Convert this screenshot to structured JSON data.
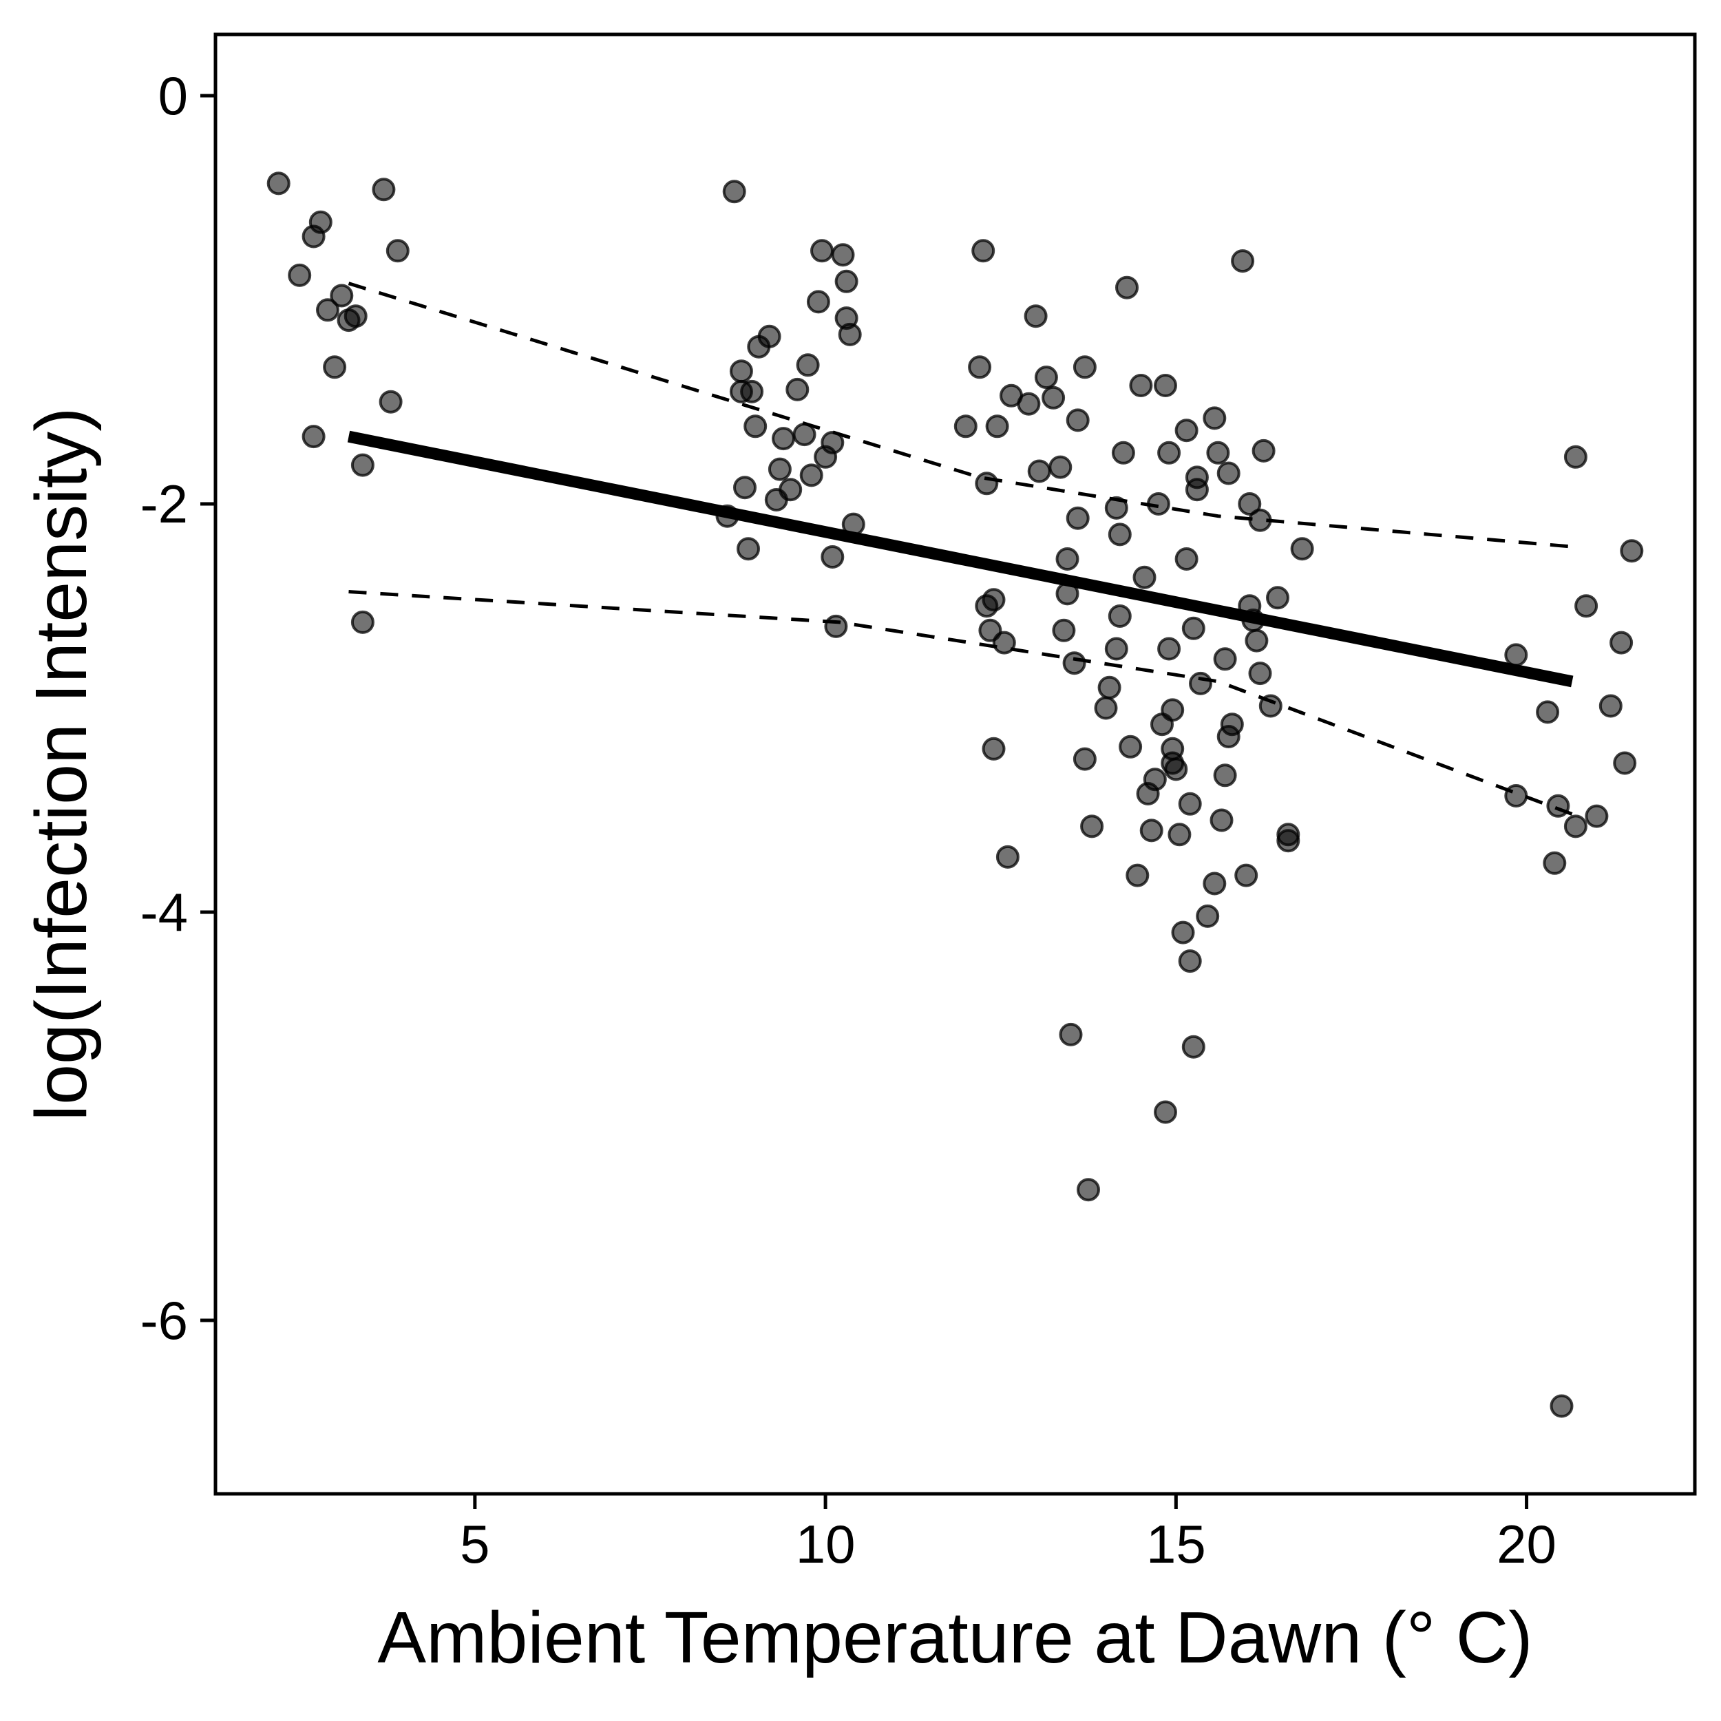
{
  "chart_data": {
    "type": "scatter",
    "title": "",
    "xlabel": "Ambient Temperature at Dawn (° C)",
    "ylabel": "log(Infection Intensity)",
    "xlim": [
      1.3,
      22.4
    ],
    "ylim": [
      -6.85,
      0.3
    ],
    "x_ticks": [
      5,
      10,
      15,
      20
    ],
    "y_ticks": [
      0,
      -2,
      -4,
      -6
    ],
    "x_tick_labels": [
      "5",
      "10",
      "15",
      "20"
    ],
    "y_tick_labels": [
      "0",
      "-2",
      "-4",
      "-6"
    ],
    "grid": false,
    "legend": "none",
    "points": [
      [
        2.2,
        -0.43
      ],
      [
        2.5,
        -0.88
      ],
      [
        2.7,
        -0.69
      ],
      [
        2.8,
        -0.62
      ],
      [
        2.9,
        -1.05
      ],
      [
        3.0,
        -1.33
      ],
      [
        3.1,
        -0.98
      ],
      [
        3.2,
        -1.1
      ],
      [
        3.3,
        -1.08
      ],
      [
        3.4,
        -1.81
      ],
      [
        3.4,
        -2.58
      ],
      [
        3.7,
        -0.46
      ],
      [
        3.8,
        -1.5
      ],
      [
        3.9,
        -0.76
      ],
      [
        2.7,
        -1.67
      ],
      [
        8.6,
        -2.06
      ],
      [
        8.7,
        -0.47
      ],
      [
        8.8,
        -1.45
      ],
      [
        8.8,
        -1.35
      ],
      [
        8.85,
        -1.92
      ],
      [
        8.9,
        -2.22
      ],
      [
        8.95,
        -1.45
      ],
      [
        9.0,
        -1.62
      ],
      [
        9.05,
        -1.23
      ],
      [
        9.2,
        -1.18
      ],
      [
        9.3,
        -1.98
      ],
      [
        9.35,
        -1.83
      ],
      [
        9.4,
        -1.68
      ],
      [
        9.5,
        -1.93
      ],
      [
        9.6,
        -1.44
      ],
      [
        9.7,
        -1.66
      ],
      [
        9.75,
        -1.32
      ],
      [
        9.8,
        -1.86
      ],
      [
        9.9,
        -1.01
      ],
      [
        9.95,
        -0.76
      ],
      [
        10.0,
        -1.77
      ],
      [
        10.1,
        -1.7
      ],
      [
        10.1,
        -2.26
      ],
      [
        10.15,
        -2.6
      ],
      [
        10.25,
        -0.78
      ],
      [
        10.3,
        -0.91
      ],
      [
        10.3,
        -1.09
      ],
      [
        10.35,
        -1.17
      ],
      [
        10.4,
        -2.1
      ],
      [
        12.0,
        -1.62
      ],
      [
        12.2,
        -1.33
      ],
      [
        12.25,
        -0.76
      ],
      [
        12.3,
        -1.9
      ],
      [
        12.3,
        -2.5
      ],
      [
        12.35,
        -2.62
      ],
      [
        12.4,
        -2.47
      ],
      [
        12.4,
        -3.2
      ],
      [
        12.45,
        -1.62
      ],
      [
        12.55,
        -2.68
      ],
      [
        12.6,
        -3.73
      ],
      [
        12.65,
        -1.47
      ],
      [
        12.9,
        -1.51
      ],
      [
        13.0,
        -1.08
      ],
      [
        13.05,
        -1.84
      ],
      [
        13.15,
        -1.38
      ],
      [
        13.25,
        -1.48
      ],
      [
        13.35,
        -1.82
      ],
      [
        13.4,
        -2.62
      ],
      [
        13.45,
        -2.44
      ],
      [
        13.45,
        -2.27
      ],
      [
        13.5,
        -4.6
      ],
      [
        13.55,
        -2.78
      ],
      [
        13.6,
        -2.07
      ],
      [
        13.6,
        -1.59
      ],
      [
        13.7,
        -3.25
      ],
      [
        13.7,
        -1.33
      ],
      [
        13.75,
        -5.36
      ],
      [
        13.8,
        -3.58
      ],
      [
        14.0,
        -3.0
      ],
      [
        14.05,
        -2.9
      ],
      [
        14.15,
        -2.02
      ],
      [
        14.15,
        -2.71
      ],
      [
        14.2,
        -2.55
      ],
      [
        14.2,
        -2.15
      ],
      [
        14.25,
        -1.75
      ],
      [
        14.3,
        -0.94
      ],
      [
        14.35,
        -3.19
      ],
      [
        14.45,
        -3.82
      ],
      [
        14.5,
        -1.42
      ],
      [
        14.55,
        -2.36
      ],
      [
        14.6,
        -3.42
      ],
      [
        14.65,
        -3.6
      ],
      [
        14.7,
        -3.35
      ],
      [
        14.75,
        -2.0
      ],
      [
        14.8,
        -3.08
      ],
      [
        14.85,
        -4.98
      ],
      [
        14.85,
        -1.42
      ],
      [
        14.9,
        -1.75
      ],
      [
        14.9,
        -2.71
      ],
      [
        14.95,
        -3.01
      ],
      [
        14.95,
        -3.2
      ],
      [
        14.95,
        -3.27
      ],
      [
        15.0,
        -3.3
      ],
      [
        15.05,
        -3.62
      ],
      [
        15.1,
        -4.1
      ],
      [
        15.15,
        -1.64
      ],
      [
        15.15,
        -2.27
      ],
      [
        15.2,
        -3.47
      ],
      [
        15.2,
        -4.24
      ],
      [
        15.25,
        -4.66
      ],
      [
        15.25,
        -2.61
      ],
      [
        15.3,
        -1.87
      ],
      [
        15.3,
        -1.93
      ],
      [
        15.35,
        -2.88
      ],
      [
        15.45,
        -4.02
      ],
      [
        15.55,
        -3.86
      ],
      [
        15.55,
        -1.58
      ],
      [
        15.6,
        -1.75
      ],
      [
        15.65,
        -3.55
      ],
      [
        15.7,
        -3.33
      ],
      [
        15.7,
        -2.76
      ],
      [
        15.75,
        -1.85
      ],
      [
        15.75,
        -3.14
      ],
      [
        15.8,
        -3.08
      ],
      [
        15.95,
        -0.81
      ],
      [
        16.0,
        -3.82
      ],
      [
        16.05,
        -2.0
      ],
      [
        16.05,
        -2.5
      ],
      [
        16.1,
        -2.57
      ],
      [
        16.15,
        -2.67
      ],
      [
        16.2,
        -2.08
      ],
      [
        16.2,
        -2.83
      ],
      [
        16.25,
        -1.74
      ],
      [
        16.35,
        -2.99
      ],
      [
        16.45,
        -2.46
      ],
      [
        16.6,
        -3.62
      ],
      [
        16.6,
        -3.65
      ],
      [
        16.8,
        -2.22
      ],
      [
        19.85,
        -2.74
      ],
      [
        19.85,
        -3.43
      ],
      [
        20.3,
        -3.02
      ],
      [
        20.4,
        -3.76
      ],
      [
        20.45,
        -3.48
      ],
      [
        20.5,
        -6.42
      ],
      [
        20.7,
        -1.77
      ],
      [
        20.7,
        -3.58
      ],
      [
        20.85,
        -2.5
      ],
      [
        21.0,
        -3.53
      ],
      [
        21.2,
        -2.99
      ],
      [
        21.35,
        -2.68
      ],
      [
        21.4,
        -3.27
      ],
      [
        21.5,
        -2.23
      ]
    ],
    "fit_line": {
      "x": [
        3.2,
        20.65
      ],
      "y": [
        -1.67,
        -2.87
      ]
    },
    "ci_upper": {
      "x": [
        3.2,
        12.2,
        15.6,
        20.65
      ],
      "y": [
        -0.92,
        -1.87,
        -2.06,
        -2.21
      ]
    },
    "ci_lower": {
      "x": [
        3.2,
        10.2,
        15.6,
        20.65
      ],
      "y": [
        -2.43,
        -2.58,
        -2.87,
        -3.52
      ]
    }
  }
}
